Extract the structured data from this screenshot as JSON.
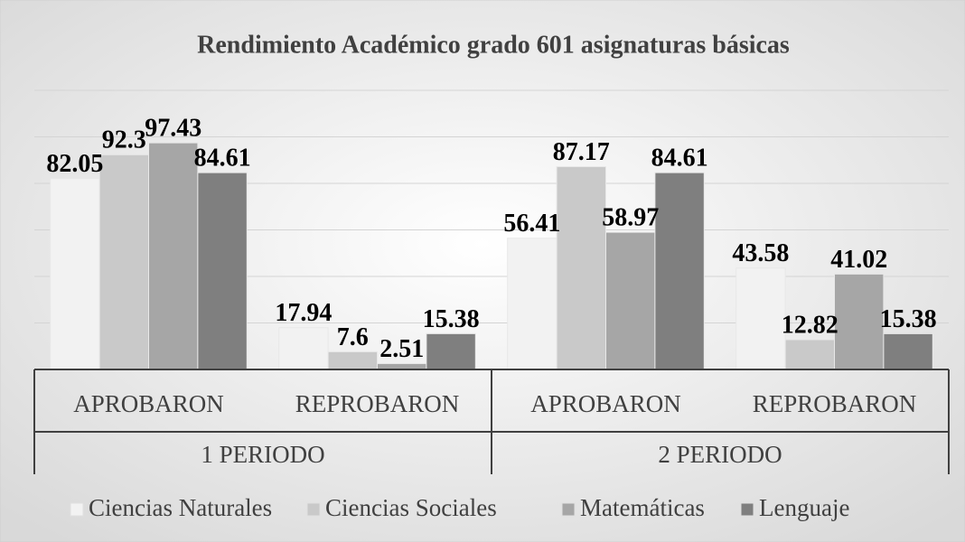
{
  "chart_data": {
    "type": "bar",
    "title": "Rendimiento Académico grado 601 asignaturas básicas",
    "categories": [
      "APROBARON",
      "REPROBARON",
      "APROBARON",
      "REPROBARON"
    ],
    "category_groups": [
      "1 PERIODO",
      "2 PERIODO"
    ],
    "series": [
      {
        "name": "Ciencias Naturales",
        "color": "#f2f2f2",
        "values": [
          82.05,
          17.94,
          56.41,
          43.58
        ]
      },
      {
        "name": "Ciencias Sociales",
        "color": "#c9c9c9",
        "values": [
          92.3,
          7.6,
          87.17,
          12.82
        ]
      },
      {
        "name": "Matemáticas",
        "color": "#a6a6a6",
        "values": [
          97.43,
          2.51,
          58.97,
          41.02
        ]
      },
      {
        "name": "Lenguaje",
        "color": "#7f7f7f",
        "values": [
          84.61,
          15.38,
          84.61,
          15.38
        ]
      }
    ],
    "ylim": [
      0,
      120
    ],
    "yticks": [
      0,
      20,
      40,
      60,
      80,
      100,
      120
    ],
    "grid": true,
    "legend": "bottom"
  }
}
